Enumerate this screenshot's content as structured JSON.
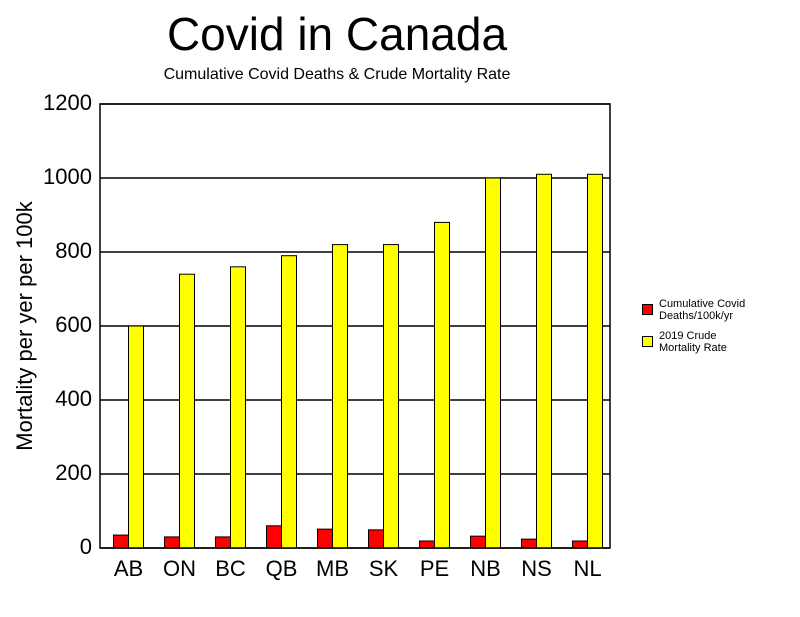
{
  "chart_data": {
    "type": "bar",
    "title": "Covid in Canada",
    "subtitle": "Cumulative Covid Deaths & Crude Mortality Rate",
    "y_label": "Mortality per yer per 100k",
    "categories": [
      "AB",
      "ON",
      "BC",
      "QB",
      "MB",
      "SK",
      "PE",
      "NB",
      "NS",
      "NL"
    ],
    "series": [
      {
        "name": "Cumulative Covid Deaths/100k/yr",
        "color": "#ff0000",
        "values": [
          35,
          30,
          30,
          60,
          51,
          49,
          19,
          32,
          24,
          19
        ]
      },
      {
        "name": "2019 Crude Mortality Rate",
        "color": "#ffff00",
        "values": [
          600,
          740,
          760,
          790,
          820,
          820,
          880,
          1000,
          1010,
          1010
        ]
      }
    ],
    "ylim": [
      0,
      1200
    ],
    "yticks": [
      0,
      200,
      400,
      600,
      800,
      1000,
      1200
    ],
    "grid": true,
    "legend": "right"
  }
}
